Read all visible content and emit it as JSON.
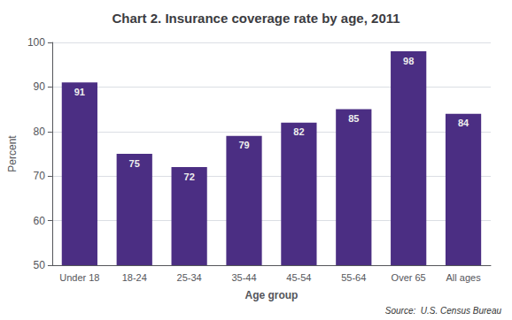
{
  "chart_data": {
    "type": "bar",
    "title": "Chart 2. Insurance coverage rate by age, 2011",
    "categories": [
      "Under 18",
      "18-24",
      "25-34",
      "35-44",
      "45-54",
      "55-64",
      "Over 65",
      "All ages"
    ],
    "values": [
      91,
      75,
      72,
      79,
      82,
      85,
      98,
      84
    ],
    "color": "#4B2E83",
    "xlabel": "Age group",
    "ylabel": "Percent",
    "ylim": [
      50,
      100
    ],
    "yticks": [
      50,
      60,
      70,
      80,
      90,
      100
    ],
    "grid": true,
    "data_labels": true,
    "annotation": "Source:  U.S. Census Bureau"
  }
}
